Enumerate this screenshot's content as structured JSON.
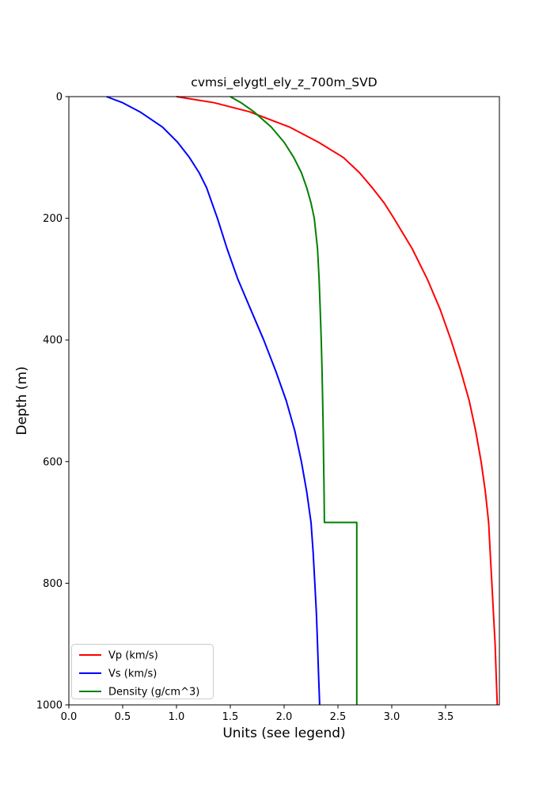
{
  "chart_data": {
    "type": "line",
    "title": "cvmsi_elygtl_ely_z_700m_SVD",
    "xlabel": "Units (see legend)",
    "ylabel": "Depth (m)",
    "xlim": [
      0.0,
      4.0
    ],
    "ylim": [
      0,
      1000
    ],
    "depth_increases_downward": true,
    "grid": false,
    "legend_position": "lower left",
    "x_ticks": [
      0.0,
      0.5,
      1.0,
      1.5,
      2.0,
      2.5,
      3.0,
      3.5
    ],
    "x_tick_labels": [
      "0.0",
      "0.5",
      "1.0",
      "1.5",
      "2.0",
      "2.5",
      "3.0",
      "3.5"
    ],
    "y_ticks": [
      0,
      200,
      400,
      600,
      800,
      1000
    ],
    "y_tick_labels": [
      "0",
      "200",
      "400",
      "600",
      "800",
      "1000"
    ],
    "axis_color": "#000000",
    "background_color": "#ffffff",
    "series": [
      {
        "id": "vp",
        "name": "Vp (km/s)",
        "color": "#ff0000",
        "depths": [
          0,
          10,
          25,
          50,
          75,
          100,
          125,
          150,
          175,
          200,
          250,
          300,
          350,
          400,
          450,
          500,
          550,
          600,
          650,
          700,
          750,
          800,
          850,
          900,
          950,
          1000
        ],
        "values": [
          1.0,
          1.35,
          1.68,
          2.05,
          2.32,
          2.55,
          2.7,
          2.82,
          2.93,
          3.02,
          3.19,
          3.33,
          3.45,
          3.55,
          3.64,
          3.72,
          3.78,
          3.83,
          3.87,
          3.9,
          3.915,
          3.93,
          3.945,
          3.96,
          3.97,
          3.98
        ]
      },
      {
        "id": "vs",
        "name": "Vs (km/s)",
        "color": "#0000ff",
        "depths": [
          0,
          10,
          25,
          50,
          75,
          100,
          125,
          150,
          175,
          200,
          250,
          300,
          350,
          400,
          450,
          500,
          550,
          600,
          650,
          700,
          750,
          800,
          850,
          900,
          950,
          1000
        ],
        "values": [
          0.35,
          0.5,
          0.66,
          0.87,
          1.01,
          1.12,
          1.21,
          1.28,
          1.33,
          1.38,
          1.47,
          1.57,
          1.69,
          1.81,
          1.92,
          2.02,
          2.1,
          2.16,
          2.21,
          2.25,
          2.27,
          2.285,
          2.3,
          2.31,
          2.32,
          2.33
        ]
      },
      {
        "id": "density",
        "name": "Density (g/cm^3)",
        "color": "#008000",
        "depths": [
          0,
          10,
          25,
          50,
          75,
          100,
          125,
          150,
          175,
          200,
          250,
          300,
          350,
          400,
          450,
          500,
          550,
          600,
          650,
          700,
          700,
          750,
          800,
          850,
          900,
          950,
          1000
        ],
        "values": [
          1.5,
          1.6,
          1.72,
          1.88,
          2.0,
          2.09,
          2.16,
          2.21,
          2.25,
          2.28,
          2.31,
          2.325,
          2.335,
          2.345,
          2.352,
          2.358,
          2.363,
          2.367,
          2.371,
          2.374,
          2.675,
          2.675,
          2.675,
          2.675,
          2.675,
          2.675,
          2.675
        ]
      }
    ]
  }
}
